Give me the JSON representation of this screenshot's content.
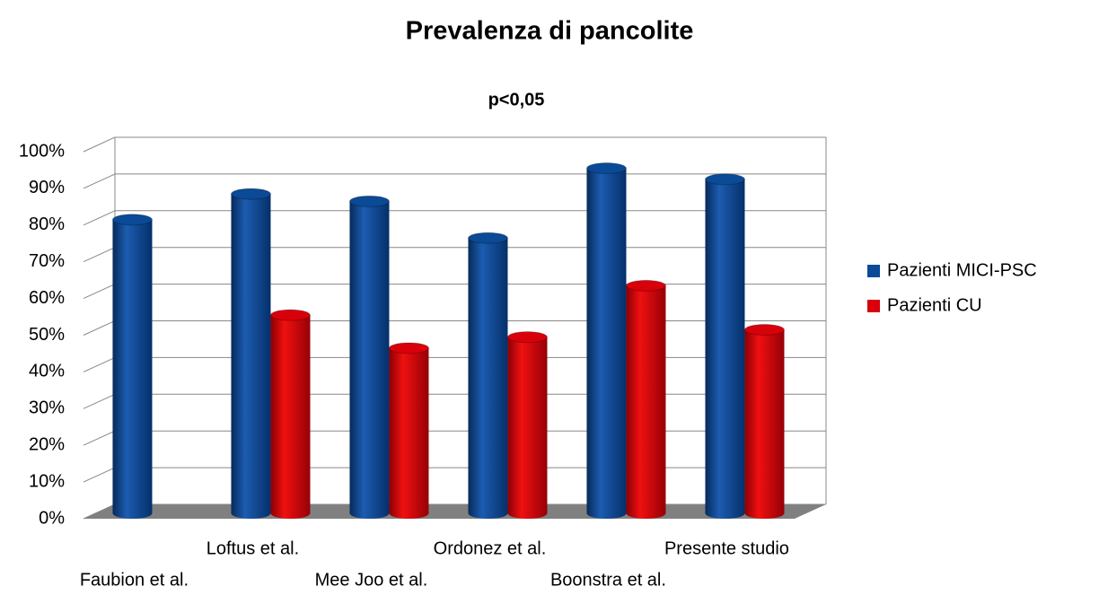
{
  "chart_data": {
    "type": "bar",
    "title": "Prevalenza di pancolite",
    "subtitle": "p<0,05",
    "categories": [
      "Faubion et al.",
      "Loftus et al.",
      "Mee Joo et al.",
      "Ordonez et al.",
      "Boonstra et al.",
      "Presente studio"
    ],
    "series": [
      {
        "name": "Pazienti MICI-PSC",
        "color": "#0a4a96",
        "values": [
          80,
          87,
          85,
          75,
          94,
          91
        ]
      },
      {
        "name": "Pazienti CU",
        "color": "#d8000a",
        "values": [
          null,
          54,
          45,
          48,
          62,
          50
        ]
      }
    ],
    "ylim": [
      0,
      100
    ],
    "yticks": [
      {
        "value": 0,
        "label": "0%"
      },
      {
        "value": 10,
        "label": "10%"
      },
      {
        "value": 20,
        "label": "20%"
      },
      {
        "value": 30,
        "label": "30%"
      },
      {
        "value": 40,
        "label": "40%"
      },
      {
        "value": 50,
        "label": "50%"
      },
      {
        "value": 60,
        "label": "60%"
      },
      {
        "value": 70,
        "label": "70%"
      },
      {
        "value": 80,
        "label": "80%"
      },
      {
        "value": 90,
        "label": "90%"
      },
      {
        "value": 100,
        "label": "100%"
      }
    ],
    "grid": true,
    "legend": "right"
  }
}
